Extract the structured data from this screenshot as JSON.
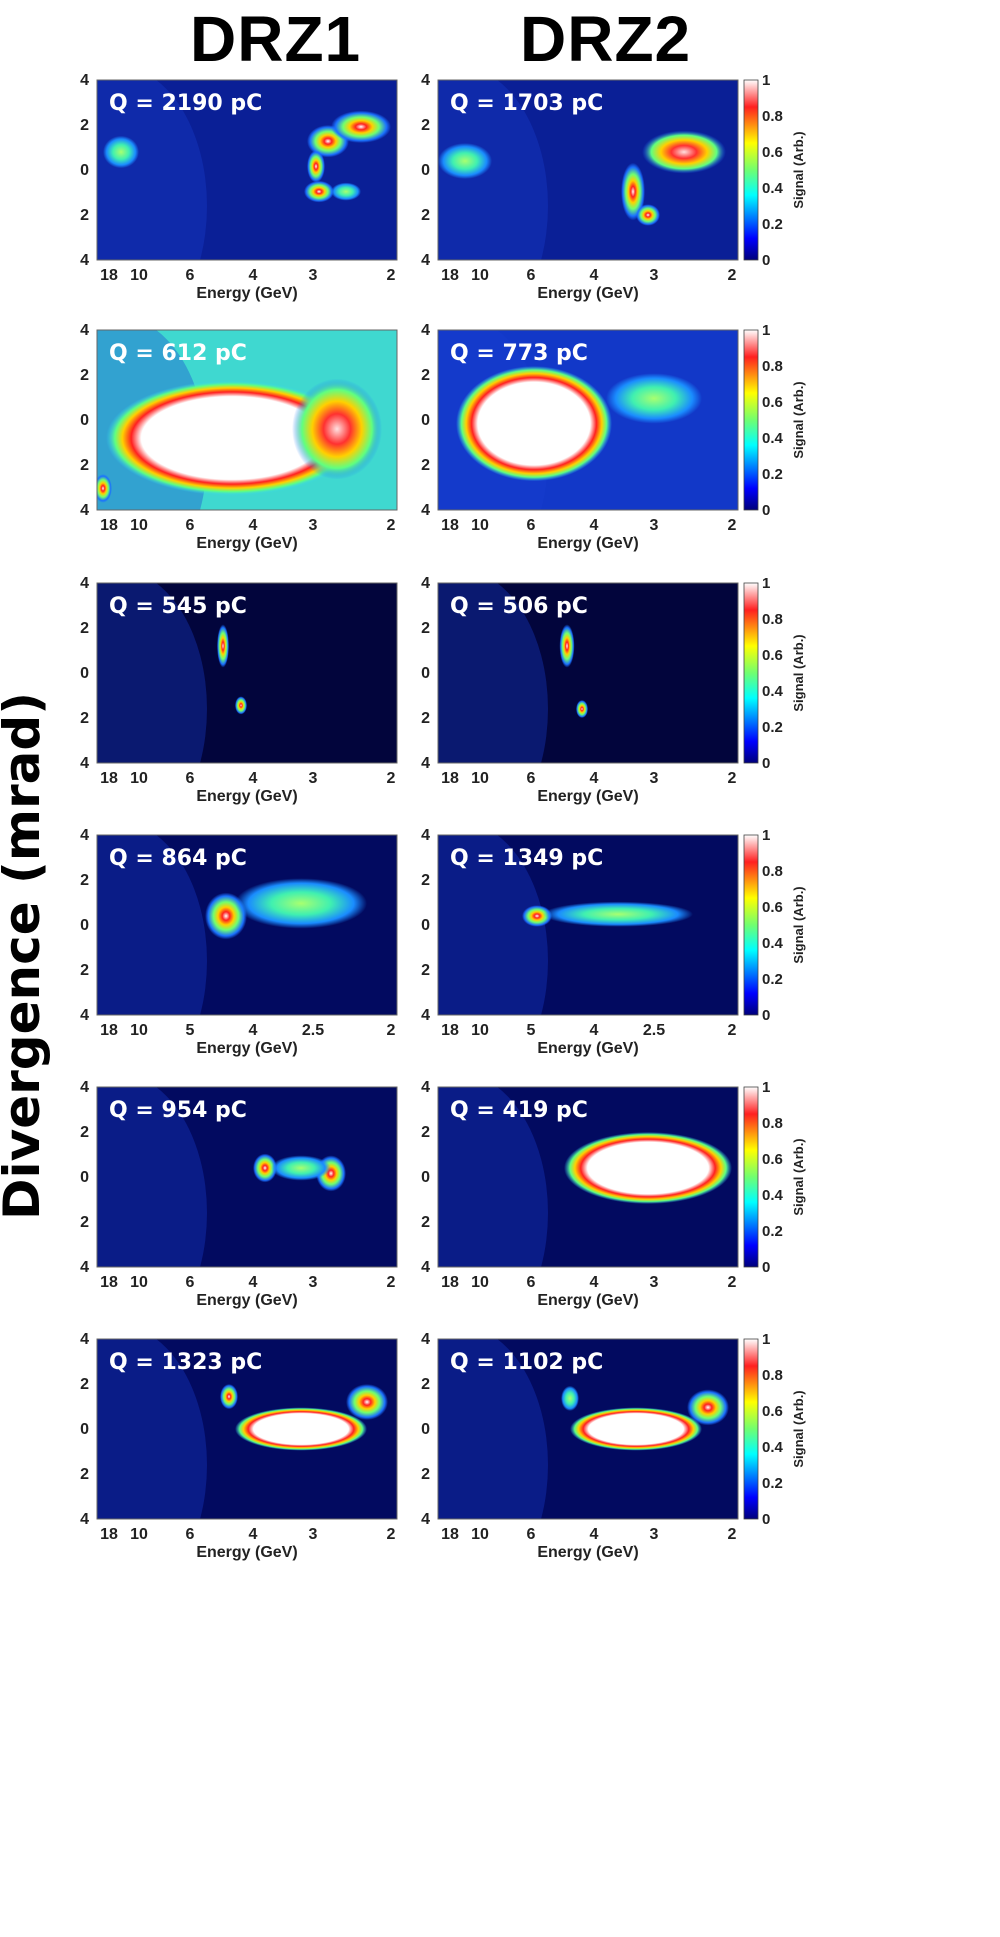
{
  "figure": {
    "col_titles": [
      "DRZ1",
      "DRZ2"
    ],
    "ylabel": "Divergence (mrad)",
    "xlabel": "Energy (GeV)",
    "yticks": [
      "4",
      "2",
      "0",
      "2",
      "4"
    ],
    "colorbar": {
      "label": "Signal (Arb.)",
      "ticks": [
        "1",
        "0.8",
        "0.6",
        "0.4",
        "0.2",
        "0"
      ]
    }
  },
  "panels": [
    {
      "row": 0,
      "col": 0,
      "q": "Q = 2190 pC",
      "xticks": [
        "18",
        "10",
        "6",
        "4",
        "3",
        "2"
      ],
      "bg": "#0a1f96",
      "blobs": [
        [
          0.08,
          0.4,
          0.06,
          0.09,
          1
        ],
        [
          0.77,
          0.34,
          0.07,
          0.09,
          2
        ],
        [
          0.88,
          0.26,
          0.1,
          0.09,
          2
        ],
        [
          0.73,
          0.48,
          0.03,
          0.09,
          2
        ],
        [
          0.74,
          0.62,
          0.05,
          0.06,
          2
        ],
        [
          0.83,
          0.62,
          0.05,
          0.05,
          1
        ]
      ]
    },
    {
      "row": 0,
      "col": 1,
      "q": "Q = 1703 pC",
      "xticks": [
        "18",
        "10",
        "6",
        "4",
        "3",
        "2"
      ],
      "bg": "#0a1f96",
      "blobs": [
        [
          0.09,
          0.45,
          0.09,
          0.1,
          1
        ],
        [
          0.82,
          0.4,
          0.14,
          0.12,
          3
        ],
        [
          0.65,
          0.62,
          0.04,
          0.16,
          2
        ],
        [
          0.7,
          0.75,
          0.04,
          0.06,
          2
        ]
      ]
    },
    {
      "row": 1,
      "col": 0,
      "q": "Q = 612 pC",
      "xticks": [
        "18",
        "10",
        "6",
        "4",
        "3",
        "2"
      ],
      "bg": "#3fd8d0",
      "blobs": [
        [
          0.45,
          0.6,
          0.42,
          0.32,
          4
        ],
        [
          0.8,
          0.55,
          0.15,
          0.28,
          3
        ],
        [
          0.02,
          0.88,
          0.03,
          0.08,
          2
        ]
      ]
    },
    {
      "row": 1,
      "col": 1,
      "q": "Q = 773 pC",
      "xticks": [
        "18",
        "10",
        "6",
        "4",
        "3",
        "2"
      ],
      "bg": "#1238c8",
      "blobs": [
        [
          0.32,
          0.52,
          0.26,
          0.32,
          4
        ],
        [
          0.72,
          0.38,
          0.16,
          0.14,
          1
        ]
      ]
    },
    {
      "row": 2,
      "col": 0,
      "q": "Q = 545 pC",
      "xticks": [
        "18",
        "10",
        "6",
        "4",
        "3",
        "2"
      ],
      "bg": "#02053c",
      "blobs": [
        [
          0.42,
          0.35,
          0.02,
          0.12,
          2
        ],
        [
          0.48,
          0.68,
          0.02,
          0.05,
          2
        ]
      ]
    },
    {
      "row": 2,
      "col": 1,
      "q": "Q = 506 pC",
      "xticks": [
        "18",
        "10",
        "6",
        "4",
        "3",
        "2"
      ],
      "bg": "#02053c",
      "blobs": [
        [
          0.43,
          0.35,
          0.025,
          0.12,
          2
        ],
        [
          0.48,
          0.7,
          0.02,
          0.05,
          2
        ]
      ]
    },
    {
      "row": 3,
      "col": 0,
      "q": "Q = 864 pC",
      "xticks": [
        "18",
        "10",
        "5",
        "4",
        "2.5",
        "2"
      ],
      "bg": "#020a60",
      "blobs": [
        [
          0.43,
          0.45,
          0.07,
          0.13,
          2
        ],
        [
          0.68,
          0.38,
          0.22,
          0.14,
          1
        ]
      ]
    },
    {
      "row": 3,
      "col": 1,
      "q": "Q = 1349 pC",
      "xticks": [
        "18",
        "10",
        "5",
        "4",
        "2.5",
        "2"
      ],
      "bg": "#020a60",
      "blobs": [
        [
          0.33,
          0.45,
          0.05,
          0.06,
          2
        ],
        [
          0.6,
          0.44,
          0.25,
          0.07,
          1
        ]
      ]
    },
    {
      "row": 4,
      "col": 0,
      "q": "Q = 954 pC",
      "xticks": [
        "18",
        "10",
        "6",
        "4",
        "3",
        "2"
      ],
      "bg": "#020a60",
      "blobs": [
        [
          0.56,
          0.45,
          0.04,
          0.08,
          2
        ],
        [
          0.78,
          0.48,
          0.05,
          0.1,
          2
        ],
        [
          0.68,
          0.45,
          0.1,
          0.07,
          1
        ]
      ]
    },
    {
      "row": 4,
      "col": 1,
      "q": "Q = 419 pC",
      "xticks": [
        "18",
        "10",
        "6",
        "4",
        "3",
        "2"
      ],
      "bg": "#020a60",
      "blobs": [
        [
          0.7,
          0.45,
          0.28,
          0.2,
          4
        ]
      ]
    },
    {
      "row": 5,
      "col": 0,
      "q": "Q = 1323 pC",
      "xticks": [
        "18",
        "10",
        "6",
        "4",
        "3",
        "2"
      ],
      "bg": "#020a60",
      "blobs": [
        [
          0.68,
          0.5,
          0.22,
          0.12,
          4
        ],
        [
          0.44,
          0.32,
          0.03,
          0.07,
          2
        ],
        [
          0.9,
          0.35,
          0.07,
          0.1,
          2
        ]
      ]
    },
    {
      "row": 5,
      "col": 1,
      "q": "Q = 1102 pC",
      "xticks": [
        "18",
        "10",
        "6",
        "4",
        "3",
        "2"
      ],
      "bg": "#020a60",
      "blobs": [
        [
          0.66,
          0.5,
          0.22,
          0.12,
          4
        ],
        [
          0.44,
          0.33,
          0.03,
          0.07,
          1
        ],
        [
          0.9,
          0.38,
          0.07,
          0.1,
          2
        ]
      ]
    }
  ]
}
